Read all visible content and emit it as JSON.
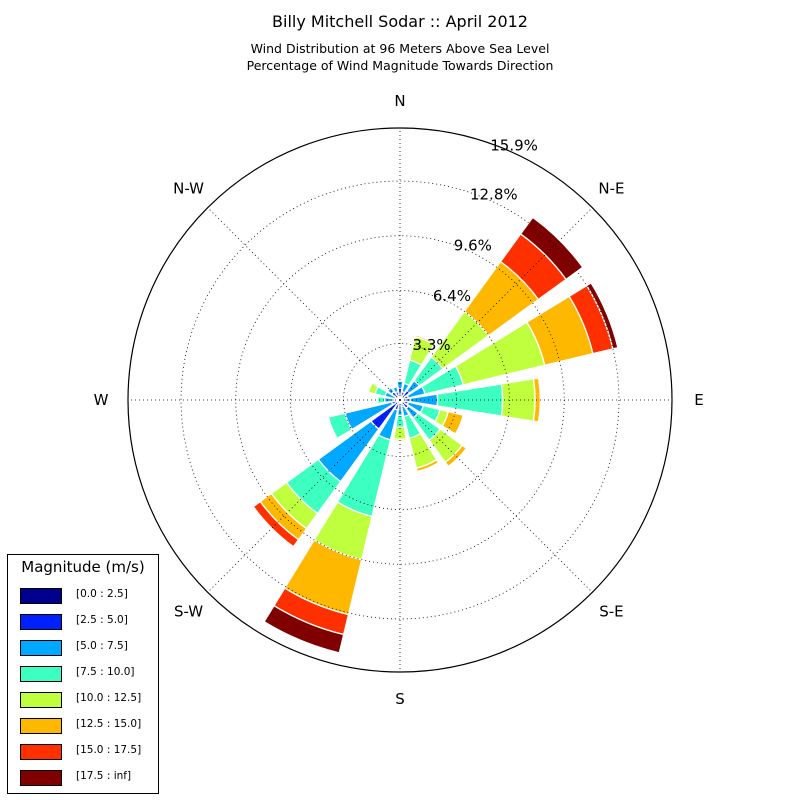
{
  "title": "Billy Mitchell Sodar :: April 2012",
  "subtitle_line1": "Wind Distribution at 96 Meters Above Sea Level",
  "subtitle_line2": "Percentage of Wind Magnitude Towards Direction",
  "legend": {
    "title": "Magnitude (m/s)",
    "items": [
      {
        "label": "[0.0 : 2.5]",
        "color": "#00008f"
      },
      {
        "label": "[2.5 : 5.0]",
        "color": "#0020ff"
      },
      {
        "label": "[5.0 : 7.5]",
        "color": "#00a8ff"
      },
      {
        "label": "[7.5 : 10.0]",
        "color": "#3dffc2"
      },
      {
        "label": "[10.0 : 12.5]",
        "color": "#bfff3d"
      },
      {
        "label": "[12.5 : 15.0]",
        "color": "#ffb800"
      },
      {
        "label": "[15.0 : 17.5]",
        "color": "#ff3000"
      },
      {
        "label": "[17.5 : inf]",
        "color": "#800000"
      }
    ]
  },
  "chart_data": {
    "type": "windrose",
    "title": "Billy Mitchell Sodar :: April 2012",
    "subtitle": "Wind Distribution at 96 Meters Above Sea Level / Percentage of Wind Magnitude Towards Direction",
    "direction_labels": [
      "N",
      "N-E",
      "E",
      "S-E",
      "S",
      "S-W",
      "W",
      "N-W"
    ],
    "radial_ticks": [
      "3.3%",
      "6.4%",
      "9.6%",
      "12.8%",
      "15.9%"
    ],
    "radial_tick_values": [
      3.3,
      6.4,
      9.6,
      12.8,
      15.9
    ],
    "rmax": 15.9,
    "grid": true,
    "legend_position": "lower-left",
    "series_names": [
      "[0.0 : 2.5]",
      "[2.5 : 5.0]",
      "[5.0 : 7.5]",
      "[7.5 : 10.0]",
      "[10.0 : 12.5]",
      "[12.5 : 15.0]",
      "[15.0 : 17.5]",
      "[17.5 : inf]"
    ],
    "sectors": [
      {
        "direction_deg": 0,
        "cumulative": [
          0.1,
          0.7,
          1.1,
          1.1,
          1.1,
          1.1,
          1.1,
          1.1
        ]
      },
      {
        "direction_deg": 22.5,
        "cumulative": [
          0.1,
          0.5,
          1.0,
          2.4,
          3.8,
          3.9,
          3.9,
          3.9
        ]
      },
      {
        "direction_deg": 45,
        "cumulative": [
          0.1,
          0.7,
          1.4,
          3.1,
          6.4,
          10.0,
          12.0,
          13.2
        ]
      },
      {
        "direction_deg": 67.5,
        "cumulative": [
          0.1,
          0.5,
          1.5,
          3.8,
          8.7,
          11.6,
          12.8,
          13.1
        ]
      },
      {
        "direction_deg": 90,
        "cumulative": [
          0.1,
          0.6,
          2.2,
          6.0,
          7.9,
          8.2,
          8.2,
          8.2
        ]
      },
      {
        "direction_deg": 112.5,
        "cumulative": [
          0.1,
          0.5,
          1.4,
          2.4,
          2.9,
          3.8,
          3.8,
          3.8
        ]
      },
      {
        "direction_deg": 135,
        "cumulative": [
          0.1,
          0.6,
          1.3,
          2.9,
          4.5,
          4.8,
          4.8,
          4.8
        ]
      },
      {
        "direction_deg": 157.5,
        "cumulative": [
          0.1,
          0.4,
          1.0,
          2.3,
          4.1,
          4.3,
          4.3,
          4.3
        ]
      },
      {
        "direction_deg": 180,
        "cumulative": [
          0.1,
          0.5,
          0.9,
          1.6,
          2.3,
          2.4,
          2.4,
          2.4
        ]
      },
      {
        "direction_deg": 202.5,
        "cumulative": [
          0.1,
          0.6,
          2.4,
          7.0,
          9.6,
          12.9,
          14.1,
          15.2
        ]
      },
      {
        "direction_deg": 225,
        "cumulative": [
          0.1,
          2.1,
          5.9,
          8.2,
          9.3,
          10.1,
          10.6,
          10.6
        ]
      },
      {
        "direction_deg": 247.5,
        "cumulative": [
          0.1,
          0.5,
          3.3,
          4.3,
          4.3,
          4.3,
          4.3,
          4.3
        ]
      },
      {
        "direction_deg": 270,
        "cumulative": [
          0.1,
          0.3,
          0.9,
          1.3,
          1.3,
          1.3,
          1.3,
          1.3
        ]
      },
      {
        "direction_deg": 292.5,
        "cumulative": [
          0.1,
          0.3,
          0.9,
          1.5,
          1.9,
          1.9,
          1.9,
          1.9
        ]
      },
      {
        "direction_deg": 315,
        "cumulative": [
          0.1,
          0.6,
          0.9,
          0.9,
          0.9,
          0.9,
          0.9,
          0.9
        ]
      },
      {
        "direction_deg": 337.5,
        "cumulative": [
          0.1,
          0.5,
          0.8,
          0.8,
          0.8,
          0.8,
          0.8,
          0.8
        ]
      }
    ]
  }
}
